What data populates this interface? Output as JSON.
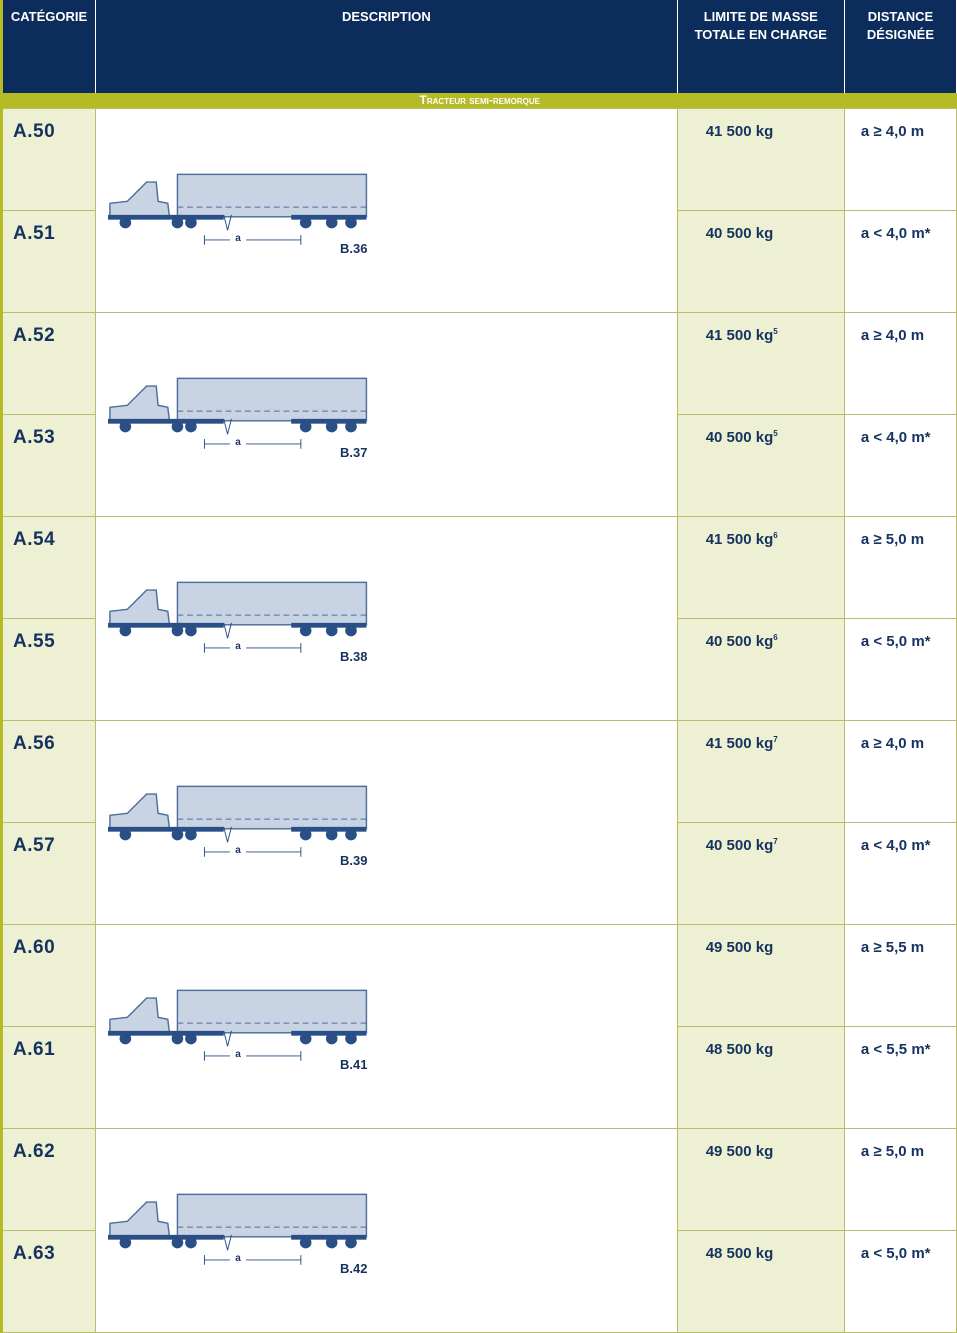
{
  "header": {
    "columns": [
      "CATÉGORIE",
      "DESCRIPTION",
      "LIMITE DE MASSE TOTALE EN CHARGE",
      "DISTANCE DÉSIGNÉE"
    ]
  },
  "section": "Tracteur semi-remorque",
  "groups": [
    {
      "drawing": "B.36",
      "dimension": "a",
      "rows": [
        {
          "category": "A.50",
          "mass": "41 500 kg",
          "distance": "a ≥ 4,0 m"
        },
        {
          "category": "A.51",
          "mass": "40 500 kg",
          "distance": "a < 4,0 m*"
        }
      ]
    },
    {
      "drawing": "B.37",
      "dimension": "a",
      "rows": [
        {
          "category": "A.52",
          "mass": "41 500 kg",
          "note": "5",
          "distance": "a ≥ 4,0 m"
        },
        {
          "category": "A.53",
          "mass": "40 500 kg",
          "note": "5",
          "distance": "a < 4,0 m*"
        }
      ]
    },
    {
      "drawing": "B.38",
      "dimension": "a",
      "rows": [
        {
          "category": "A.54",
          "mass": "41 500 kg",
          "note": "6",
          "distance": "a ≥ 5,0 m"
        },
        {
          "category": "A.55",
          "mass": "40 500 kg",
          "note": "6",
          "distance": "a < 5,0 m*"
        }
      ]
    },
    {
      "drawing": "B.39",
      "dimension": "a",
      "rows": [
        {
          "category": "A.56",
          "mass": "41 500 kg",
          "note": "7",
          "distance": "a ≥ 4,0 m"
        },
        {
          "category": "A.57",
          "mass": "40 500 kg",
          "note": "7",
          "distance": "a < 4,0 m*"
        }
      ]
    },
    {
      "drawing": "B.41",
      "dimension": "a",
      "rows": [
        {
          "category": "A.60",
          "mass": "49 500 kg",
          "distance": "a ≥ 5,5 m"
        },
        {
          "category": "A.61",
          "mass": "48 500 kg",
          "distance": "a < 5,5 m*"
        }
      ]
    },
    {
      "drawing": "B.42",
      "dimension": "a",
      "rows": [
        {
          "category": "A.62",
          "mass": "49 500 kg",
          "distance": "a ≥ 5,0 m"
        },
        {
          "category": "A.63",
          "mass": "48 500 kg",
          "distance": "a < 5,0 m*"
        }
      ]
    }
  ]
}
